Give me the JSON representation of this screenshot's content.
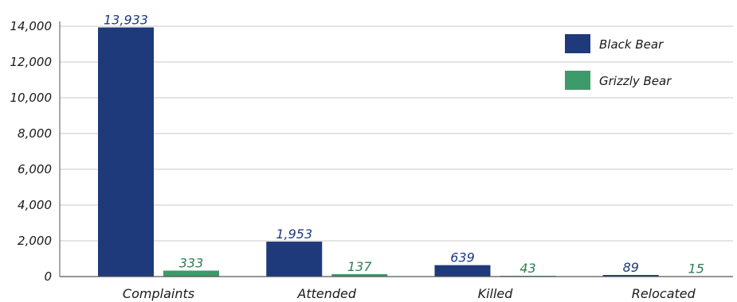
{
  "chart_data": {
    "type": "bar",
    "title": "",
    "xlabel": "",
    "ylabel": "",
    "categories": [
      "Complaints",
      "Attended",
      "Killed",
      "Relocated"
    ],
    "series": [
      {
        "name": "Black Bear",
        "color": "#1e3a7b",
        "label_color": "#1e3a7b",
        "values": [
          13933,
          1953,
          639,
          89
        ],
        "labels": [
          "13,933",
          "1,953",
          "639",
          "89"
        ]
      },
      {
        "name": "Grizzly Bear",
        "color": "#3d9a6a",
        "label_color": "#2f7d55",
        "values": [
          333,
          137,
          43,
          15
        ],
        "labels": [
          "333",
          "137",
          "43",
          "15"
        ]
      }
    ],
    "ylim": [
      0,
      14000
    ],
    "yticks": [
      0,
      2000,
      4000,
      6000,
      8000,
      10000,
      12000,
      14000
    ],
    "ytick_labels": [
      "0",
      "2,000",
      "4,000",
      "6,000",
      "8,000",
      "10,000",
      "12,000",
      "14,000"
    ],
    "grid": true,
    "legend_position": "top-right"
  }
}
